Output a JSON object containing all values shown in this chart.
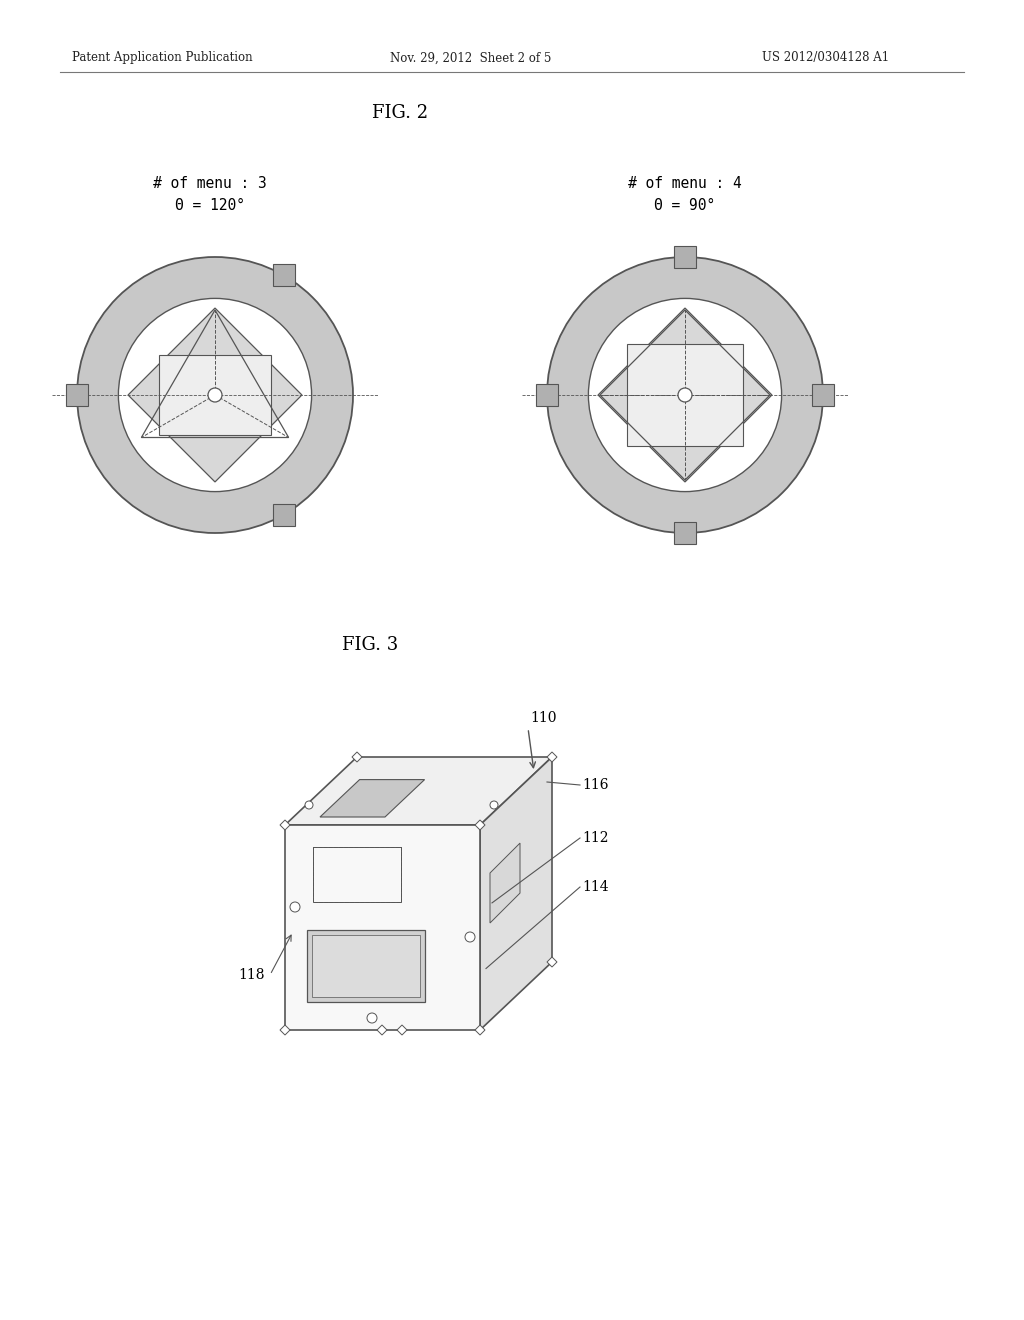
{
  "bg_color": "#ffffff",
  "header_left": "Patent Application Publication",
  "header_mid": "Nov. 29, 2012  Sheet 2 of 5",
  "header_right": "US 2012/0304128 A1",
  "fig2_title": "FIG. 2",
  "fig3_title": "FIG. 3",
  "label_menu3_line1": "# of menu : 3",
  "label_menu3_line2": "Θ = 120°",
  "label_menu4_line1": "# of menu : 4",
  "label_menu4_line2": "Θ = 90°",
  "line_color": "#555555",
  "circle_outer_fill": "#c8c8c8",
  "inner_white": "#ffffff",
  "diamond_fill": "#d8d8d8",
  "rect_fill": "#eeeeee",
  "handle_fill": "#b0b0b0",
  "device_top_fill": "#f0f0f0",
  "device_right_fill": "#e0e0e0",
  "device_front_fill": "#f8f8f8",
  "screen_fill": "#d0d0d0"
}
